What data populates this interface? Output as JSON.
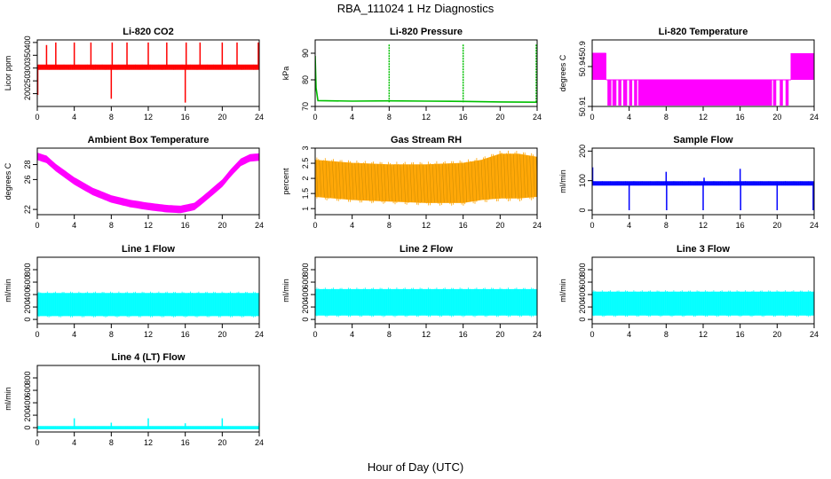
{
  "figure": {
    "title": "RBA_111024  1 Hz Diagnostics",
    "xlabel": "Hour of Day (UTC)"
  },
  "chart_data": [
    {
      "type": "line",
      "title": "Li-820 CO2",
      "ylabel": "Licor ppm",
      "color": "#ff0000",
      "xlim": [
        0,
        24
      ],
      "xticks": [
        0,
        4,
        8,
        12,
        16,
        20,
        24
      ],
      "ylim": [
        150,
        410
      ],
      "yticks": [
        200,
        250,
        300,
        350,
        400
      ],
      "grid": false,
      "band": {
        "x": [
          0,
          24
        ],
        "low": [
          295,
          295
        ],
        "high": [
          312,
          312
        ]
      },
      "spikes": [
        {
          "x": 0.05,
          "y": 195
        },
        {
          "x": 1.0,
          "y": 390
        },
        {
          "x": 2.0,
          "y": 400
        },
        {
          "x": 4.0,
          "y": 400
        },
        {
          "x": 5.8,
          "y": 400
        },
        {
          "x": 8.0,
          "y": 180
        },
        {
          "x": 8.1,
          "y": 400
        },
        {
          "x": 9.7,
          "y": 400
        },
        {
          "x": 12.0,
          "y": 400
        },
        {
          "x": 14.0,
          "y": 400
        },
        {
          "x": 16.0,
          "y": 165
        },
        {
          "x": 16.1,
          "y": 400
        },
        {
          "x": 17.6,
          "y": 400
        },
        {
          "x": 20.0,
          "y": 400
        },
        {
          "x": 21.6,
          "y": 400
        },
        {
          "x": 23.9,
          "y": 400
        }
      ],
      "series": [
        {
          "x": [
            0,
            24
          ],
          "y": [
            305,
            305
          ]
        }
      ]
    },
    {
      "type": "line",
      "title": "Li-820 Pressure",
      "ylabel": "kPa",
      "color": "#00c000",
      "xlim": [
        0,
        24
      ],
      "xticks": [
        0,
        4,
        8,
        12,
        16,
        20,
        24
      ],
      "ylim": [
        70,
        95
      ],
      "yticks": [
        70,
        80,
        90
      ],
      "grid": false,
      "series": [
        {
          "x": [
            0,
            0.1,
            0.3,
            4,
            8,
            12,
            16,
            20,
            23.5,
            24
          ],
          "y": [
            89,
            77,
            72.2,
            72.0,
            72.1,
            72.0,
            71.9,
            71.7,
            71.6,
            71.6
          ]
        }
      ],
      "spikes": [
        {
          "x": 8.0,
          "y": 93.5
        },
        {
          "x": 16.0,
          "y": 93.5
        },
        {
          "x": 23.9,
          "y": 93.5
        }
      ]
    },
    {
      "type": "line",
      "title": "Li-820 Temperature",
      "ylabel": "degrees C",
      "color": "#ff00ff",
      "xlim": [
        0,
        24
      ],
      "xticks": [
        0,
        4,
        8,
        12,
        16,
        20,
        24
      ],
      "ylim": [
        50.91,
        50.96
      ],
      "yticks": [
        50.91,
        50.94
      ],
      "ytick_extra": [
        "50.9"
      ],
      "grid": false,
      "levels": [
        50.91,
        50.93,
        50.95
      ],
      "series": [
        {
          "x": [
            0,
            1.5,
            21.5,
            24
          ],
          "y": [
            50.95,
            50.93,
            50.93,
            50.95
          ]
        }
      ]
    },
    {
      "type": "line",
      "title": "Ambient Box Temperature",
      "ylabel": "degrees C",
      "color": "#ff00ff",
      "xlim": [
        0,
        24
      ],
      "xticks": [
        0,
        4,
        8,
        12,
        16,
        20,
        24
      ],
      "ylim": [
        21.3,
        30.2
      ],
      "yticks": [
        22,
        26,
        28
      ],
      "grid": false,
      "series": [
        {
          "x": [
            0,
            1,
            2,
            4,
            6,
            8,
            10,
            12,
            14,
            15.5,
            17,
            18,
            20,
            21,
            22,
            23,
            24
          ],
          "y": [
            29.1,
            28.7,
            27.6,
            25.8,
            24.4,
            23.4,
            22.8,
            22.4,
            22.1,
            22.0,
            22.4,
            23.4,
            25.5,
            27.0,
            28.3,
            28.9,
            29.0
          ]
        }
      ],
      "band_halfwidth": 0.5
    },
    {
      "type": "line",
      "title": "Gas Stream RH",
      "ylabel": "percent",
      "color": "#ffa500",
      "xlim": [
        0,
        24
      ],
      "xticks": [
        0,
        4,
        8,
        12,
        16,
        20,
        24
      ],
      "ylim": [
        0.8,
        3.0
      ],
      "yticks": [
        1.0,
        1.5,
        2.0,
        2.5,
        3.0
      ],
      "grid": false,
      "band": {
        "x": [
          0,
          4,
          8,
          12,
          16,
          18,
          20,
          22,
          24
        ],
        "low": [
          1.4,
          1.3,
          1.25,
          1.2,
          1.2,
          1.3,
          1.35,
          1.35,
          1.4
        ],
        "high": [
          2.6,
          2.5,
          2.45,
          2.45,
          2.5,
          2.6,
          2.8,
          2.8,
          2.7
        ]
      }
    },
    {
      "type": "line",
      "title": "Sample Flow",
      "ylabel": "ml/min",
      "color": "#0000ff",
      "xlim": [
        0,
        24
      ],
      "xticks": [
        0,
        4,
        8,
        12,
        16,
        20,
        24
      ],
      "ylim": [
        -15,
        210
      ],
      "yticks": [
        0,
        100,
        200
      ],
      "grid": false,
      "band": {
        "x": [
          0,
          24
        ],
        "low": [
          85,
          85
        ],
        "high": [
          97,
          97
        ]
      },
      "spikes": [
        {
          "x": 0.05,
          "y": 145
        },
        {
          "x": 4.0,
          "y": 0
        },
        {
          "x": 8.0,
          "y": 130
        },
        {
          "x": 8.05,
          "y": 0
        },
        {
          "x": 12.0,
          "y": 0
        },
        {
          "x": 12.1,
          "y": 110
        },
        {
          "x": 16.0,
          "y": 140
        },
        {
          "x": 16.05,
          "y": 0
        },
        {
          "x": 20.0,
          "y": 0
        },
        {
          "x": 23.9,
          "y": 0
        }
      ]
    },
    {
      "type": "line",
      "title": "Line 1 Flow",
      "ylabel": "ml/min",
      "color": "#00ffff",
      "xlim": [
        0,
        24
      ],
      "xticks": [
        0,
        4,
        8,
        12,
        16,
        20,
        24
      ],
      "ylim": [
        -70,
        1000
      ],
      "yticks": [
        0,
        200,
        400,
        600,
        800
      ],
      "grid": false,
      "band": {
        "x": [
          0,
          24
        ],
        "low": [
          60,
          60
        ],
        "high": [
          420,
          420
        ]
      }
    },
    {
      "type": "line",
      "title": "Line 2 Flow",
      "ylabel": "ml/min",
      "color": "#00ffff",
      "xlim": [
        0,
        24
      ],
      "xticks": [
        0,
        4,
        8,
        12,
        16,
        20,
        24
      ],
      "ylim": [
        -70,
        1000
      ],
      "yticks": [
        0,
        200,
        400,
        600,
        800
      ],
      "grid": false,
      "band": {
        "x": [
          0,
          24
        ],
        "low": [
          70,
          70
        ],
        "high": [
          480,
          480
        ]
      }
    },
    {
      "type": "line",
      "title": "Line 3 Flow",
      "ylabel": "ml/min",
      "color": "#00ffff",
      "xlim": [
        0,
        24
      ],
      "xticks": [
        0,
        4,
        8,
        12,
        16,
        20,
        24
      ],
      "ylim": [
        -70,
        1000
      ],
      "yticks": [
        0,
        200,
        400,
        600,
        800
      ],
      "grid": false,
      "band": {
        "x": [
          0,
          24
        ],
        "low": [
          70,
          70
        ],
        "high": [
          440,
          440
        ]
      }
    },
    {
      "type": "line",
      "title": "Line 4 (LT) Flow",
      "ylabel": "ml/min",
      "color": "#00ffff",
      "xlim": [
        0,
        24
      ],
      "xticks": [
        0,
        4,
        8,
        12,
        16,
        20,
        24
      ],
      "ylim": [
        -70,
        1000
      ],
      "yticks": [
        0,
        200,
        400,
        600,
        800
      ],
      "grid": false,
      "band": {
        "x": [
          0,
          24
        ],
        "low": [
          -20,
          -20
        ],
        "high": [
          20,
          20
        ]
      },
      "spikes": [
        {
          "x": 4.0,
          "y": 150
        },
        {
          "x": 8.0,
          "y": 80
        },
        {
          "x": 12.0,
          "y": 150
        },
        {
          "x": 16.0,
          "y": 70
        },
        {
          "x": 20.0,
          "y": 150
        },
        {
          "x": 24.0,
          "y": 80
        }
      ]
    }
  ]
}
